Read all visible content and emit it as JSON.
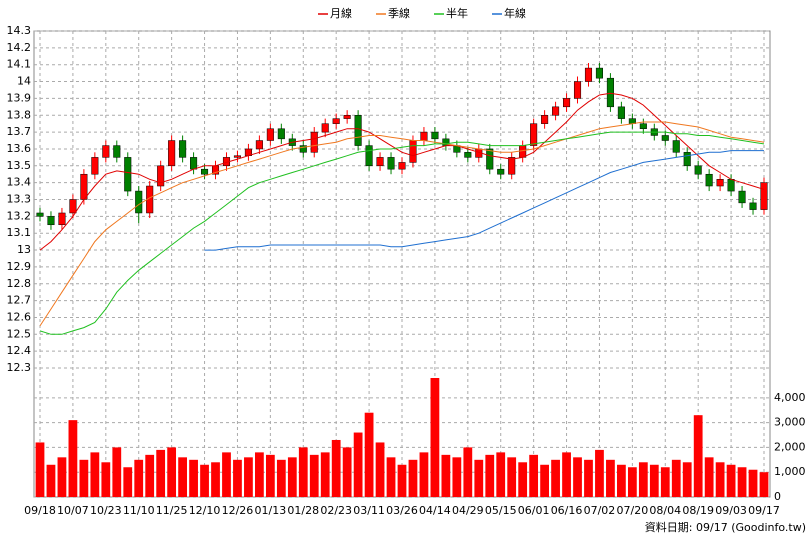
{
  "chart_data": [
    {
      "type": "candlestick",
      "categories": [
        "09/18",
        null,
        null,
        "10/07",
        null,
        null,
        "10/23",
        null,
        null,
        "11/10",
        null,
        null,
        "11/25",
        null,
        null,
        "12/10",
        null,
        null,
        "12/26",
        null,
        null,
        "01/13",
        null,
        null,
        "01/28",
        null,
        null,
        "02/23",
        null,
        null,
        "03/11",
        null,
        null,
        "03/26",
        null,
        null,
        "04/14",
        null,
        null,
        "04/29",
        null,
        null,
        "05/15",
        null,
        null,
        "06/01",
        null,
        null,
        "06/16",
        null,
        null,
        "07/02",
        null,
        null,
        "07/20",
        null,
        null,
        "08/04",
        null,
        null,
        "08/19",
        null,
        null,
        "09/03",
        null,
        null,
        "09/17"
      ],
      "open": [
        13.22,
        13.2,
        13.15,
        13.22,
        13.3,
        13.45,
        13.55,
        13.62,
        13.55,
        13.35,
        13.22,
        13.38,
        13.5,
        13.65,
        13.55,
        13.48,
        13.45,
        13.5,
        13.55,
        13.56,
        13.6,
        13.65,
        13.72,
        13.66,
        13.62,
        13.58,
        13.7,
        13.75,
        13.78,
        13.8,
        13.62,
        13.5,
        13.55,
        13.48,
        13.52,
        13.65,
        13.7,
        13.66,
        13.62,
        13.58,
        13.55,
        13.6,
        13.48,
        13.45,
        13.55,
        13.62,
        13.75,
        13.8,
        13.85,
        13.9,
        14.0,
        14.08,
        14.02,
        13.85,
        13.78,
        13.75,
        13.72,
        13.68,
        13.65,
        13.58,
        13.5,
        13.45,
        13.38,
        13.42,
        13.35,
        13.28,
        13.24
      ],
      "high": [
        13.25,
        13.23,
        13.25,
        13.33,
        13.48,
        13.58,
        13.65,
        13.65,
        13.58,
        13.38,
        13.41,
        13.53,
        13.68,
        13.68,
        13.58,
        13.51,
        13.53,
        13.58,
        13.59,
        13.63,
        13.68,
        13.75,
        13.75,
        13.69,
        13.65,
        13.73,
        13.78,
        13.81,
        13.83,
        13.83,
        13.65,
        13.58,
        13.58,
        13.55,
        13.68,
        13.73,
        13.73,
        13.69,
        13.65,
        13.61,
        13.63,
        13.63,
        13.51,
        13.58,
        13.65,
        13.78,
        13.83,
        13.88,
        13.93,
        14.03,
        14.11,
        14.11,
        14.05,
        13.88,
        13.81,
        13.78,
        13.75,
        13.71,
        13.68,
        13.61,
        13.53,
        13.48,
        13.45,
        13.45,
        13.38,
        13.31,
        13.43
      ],
      "low": [
        13.17,
        13.12,
        13.12,
        13.19,
        13.27,
        13.42,
        13.52,
        13.52,
        13.32,
        13.16,
        13.19,
        13.35,
        13.47,
        13.52,
        13.45,
        13.42,
        13.42,
        13.47,
        13.52,
        13.53,
        13.57,
        13.62,
        13.63,
        13.59,
        13.55,
        13.55,
        13.67,
        13.72,
        13.75,
        13.59,
        13.47,
        13.47,
        13.45,
        13.45,
        13.49,
        13.62,
        13.63,
        13.59,
        13.55,
        13.52,
        13.52,
        13.45,
        13.42,
        13.42,
        13.52,
        13.59,
        13.72,
        13.77,
        13.82,
        13.87,
        13.97,
        13.99,
        13.82,
        13.75,
        13.72,
        13.69,
        13.65,
        13.62,
        13.55,
        13.47,
        13.42,
        13.35,
        13.35,
        13.32,
        13.25,
        13.21,
        13.21
      ],
      "close": [
        13.2,
        13.15,
        13.22,
        13.3,
        13.45,
        13.55,
        13.62,
        13.55,
        13.35,
        13.22,
        13.38,
        13.5,
        13.65,
        13.55,
        13.48,
        13.45,
        13.5,
        13.55,
        13.56,
        13.6,
        13.65,
        13.72,
        13.66,
        13.62,
        13.58,
        13.7,
        13.75,
        13.78,
        13.8,
        13.62,
        13.5,
        13.55,
        13.48,
        13.52,
        13.65,
        13.7,
        13.66,
        13.62,
        13.58,
        13.55,
        13.6,
        13.48,
        13.45,
        13.55,
        13.62,
        13.75,
        13.8,
        13.85,
        13.9,
        14.0,
        14.08,
        14.02,
        13.85,
        13.78,
        13.75,
        13.72,
        13.68,
        13.65,
        13.58,
        13.5,
        13.45,
        13.38,
        13.42,
        13.35,
        13.28,
        13.24,
        13.4
      ],
      "up_color": "#ff0000",
      "down_color": "#008000",
      "series": [
        {
          "name": "月線",
          "color": "#e00000",
          "values": [
            13.0,
            13.05,
            13.12,
            13.2,
            13.3,
            13.38,
            13.45,
            13.47,
            13.46,
            13.45,
            13.42,
            13.4,
            13.42,
            13.45,
            13.48,
            13.5,
            13.5,
            13.52,
            13.54,
            13.56,
            13.58,
            13.6,
            13.62,
            13.64,
            13.65,
            13.66,
            13.68,
            13.7,
            13.72,
            13.72,
            13.7,
            13.66,
            13.62,
            13.58,
            13.56,
            13.58,
            13.6,
            13.62,
            13.62,
            13.6,
            13.58,
            13.56,
            13.55,
            13.54,
            13.55,
            13.58,
            13.64,
            13.7,
            13.76,
            13.83,
            13.88,
            13.92,
            13.93,
            13.92,
            13.9,
            13.86,
            13.8,
            13.74,
            13.68,
            13.62,
            13.56,
            13.5,
            13.46,
            13.42,
            13.4,
            13.38,
            13.36
          ]
        },
        {
          "name": "季線",
          "color": "#f07820",
          "values": [
            12.55,
            12.65,
            12.75,
            12.85,
            12.95,
            13.05,
            13.12,
            13.17,
            13.22,
            13.27,
            13.31,
            13.34,
            13.37,
            13.4,
            13.42,
            13.44,
            13.46,
            13.48,
            13.5,
            13.52,
            13.54,
            13.56,
            13.58,
            13.6,
            13.61,
            13.62,
            13.63,
            13.64,
            13.66,
            13.67,
            13.68,
            13.68,
            13.67,
            13.66,
            13.65,
            13.65,
            13.64,
            13.63,
            13.62,
            13.61,
            13.6,
            13.59,
            13.58,
            13.58,
            13.59,
            13.6,
            13.62,
            13.64,
            13.66,
            13.68,
            13.7,
            13.72,
            13.73,
            13.74,
            13.75,
            13.76,
            13.76,
            13.76,
            13.75,
            13.74,
            13.73,
            13.71,
            13.69,
            13.67,
            13.66,
            13.65,
            13.64
          ]
        },
        {
          "name": "半年",
          "color": "#20c020",
          "values": [
            12.52,
            12.5,
            12.5,
            12.52,
            12.54,
            12.57,
            12.65,
            12.75,
            12.82,
            12.88,
            12.93,
            12.98,
            13.03,
            13.08,
            13.13,
            13.17,
            13.22,
            13.27,
            13.32,
            13.37,
            13.4,
            13.42,
            13.44,
            13.46,
            13.48,
            13.5,
            13.52,
            13.54,
            13.56,
            13.58,
            13.59,
            13.6,
            13.6,
            13.61,
            13.62,
            13.62,
            13.63,
            13.63,
            13.64,
            13.64,
            13.63,
            13.62,
            13.62,
            13.62,
            13.62,
            13.63,
            13.64,
            13.65,
            13.66,
            13.67,
            13.68,
            13.69,
            13.7,
            13.7,
            13.7,
            13.7,
            13.7,
            13.7,
            13.69,
            13.69,
            13.68,
            13.68,
            13.67,
            13.66,
            13.65,
            13.64,
            13.63
          ]
        },
        {
          "name": "年線",
          "color": "#1f6fd0",
          "values": [
            null,
            null,
            null,
            null,
            null,
            null,
            null,
            null,
            null,
            null,
            null,
            null,
            null,
            null,
            null,
            13.0,
            13.0,
            13.01,
            13.02,
            13.02,
            13.02,
            13.03,
            13.03,
            13.03,
            13.03,
            13.03,
            13.03,
            13.03,
            13.03,
            13.03,
            13.03,
            13.03,
            13.02,
            13.02,
            13.03,
            13.04,
            13.05,
            13.06,
            13.07,
            13.08,
            13.1,
            13.13,
            13.16,
            13.19,
            13.22,
            13.25,
            13.28,
            13.31,
            13.34,
            13.37,
            13.4,
            13.43,
            13.46,
            13.48,
            13.5,
            13.52,
            13.53,
            13.54,
            13.55,
            13.56,
            13.57,
            13.58,
            13.58,
            13.59,
            13.59,
            13.59,
            13.59
          ]
        }
      ],
      "ylim": [
        12.3,
        14.3
      ],
      "yticks": [
        12.3,
        12.4,
        12.5,
        12.6,
        12.7,
        12.8,
        12.9,
        13,
        13.1,
        13.2,
        13.3,
        13.4,
        13.5,
        13.6,
        13.7,
        13.8,
        13.9,
        14,
        14.1,
        14.2,
        14.3
      ],
      "grid": true,
      "legend": "top"
    },
    {
      "type": "bar",
      "values": [
        2200,
        1300,
        1600,
        3100,
        1500,
        1800,
        1400,
        2000,
        1200,
        1500,
        1700,
        1900,
        2000,
        1600,
        1500,
        1300,
        1400,
        1800,
        1500,
        1600,
        1800,
        1700,
        1500,
        1600,
        2000,
        1700,
        1800,
        2300,
        2000,
        2600,
        3400,
        2200,
        1600,
        1300,
        1500,
        1800,
        4800,
        1700,
        1600,
        2000,
        1500,
        1700,
        1800,
        1600,
        1400,
        1700,
        1300,
        1500,
        1800,
        1600,
        1500,
        1900,
        1500,
        1300,
        1200,
        1400,
        1300,
        1200,
        1500,
        1400,
        3300,
        1600,
        1400,
        1300,
        1200,
        1100,
        1000
      ],
      "color": "#ff0000",
      "ylim": [
        0,
        4800
      ],
      "yticks": [
        0,
        {
          "value": 1000,
          "label": "1,000"
        },
        {
          "value": 2000,
          "label": "2,000"
        },
        {
          "value": 3000,
          "label": "3,000"
        },
        {
          "value": 4000,
          "label": "4,000"
        }
      ],
      "grid": true
    }
  ],
  "footnote": "資料日期: 09/17 (Goodinfo.tw)"
}
